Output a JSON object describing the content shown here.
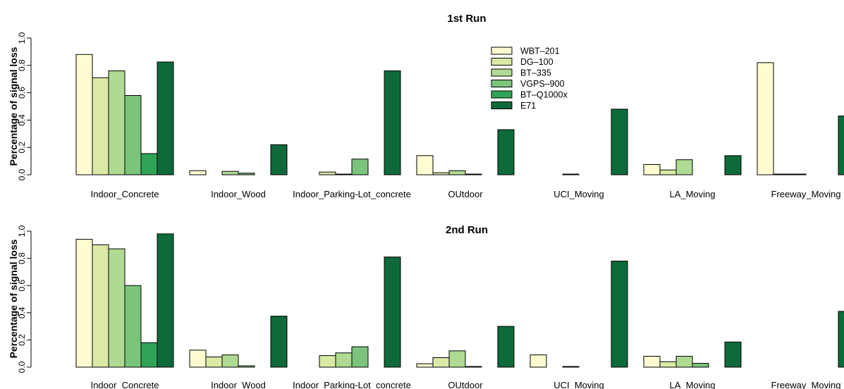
{
  "chart_data": [
    {
      "type": "bar",
      "title": "1st Run",
      "ylabel": "Percentage of signal loss",
      "xlabel": "",
      "ylim": [
        0,
        1.0
      ],
      "yticks": [
        "0.0",
        "0.2",
        "0.4",
        "0.6",
        "0.8",
        "1.0"
      ],
      "categories": [
        "Indoor_Concrete",
        "Indoor_Wood",
        "Indoor_Parking-Lot_concrete",
        "OUtdoor",
        "UCI_Moving",
        "LA_Moving",
        "Freeway_Moving"
      ],
      "legend_position": "top-center",
      "series": [
        {
          "name": "WBT–201",
          "color": "#FFFCD2",
          "values": [
            0.88,
            0.03,
            0.0,
            0.14,
            0.0,
            0.075,
            0.82
          ]
        },
        {
          "name": "DG–100",
          "color": "#D9E9A6",
          "values": [
            0.71,
            0.0,
            0.02,
            0.015,
            0.0,
            0.035,
            0.005
          ]
        },
        {
          "name": "BT–335",
          "color": "#AFDA92",
          "values": [
            0.76,
            0.025,
            0.005,
            0.03,
            0.005,
            0.11,
            0.005
          ]
        },
        {
          "name": "VGPS–900",
          "color": "#7AC47C",
          "values": [
            0.58,
            0.012,
            0.115,
            0.005,
            0.0,
            0.0,
            0.0
          ]
        },
        {
          "name": "BT–Q1000x",
          "color": "#2FA456",
          "values": [
            0.155,
            0.0,
            0.0,
            0.0,
            0.0,
            0.0,
            0.0
          ]
        },
        {
          "name": "E71",
          "color": "#0E6A3A",
          "values": [
            0.825,
            0.22,
            0.76,
            0.33,
            0.48,
            0.14,
            0.43
          ]
        }
      ]
    },
    {
      "type": "bar",
      "title": "2nd Run",
      "ylabel": "Percentage of signal loss",
      "xlabel": "",
      "ylim": [
        0,
        1.0
      ],
      "yticks": [
        "0.0",
        "0.2",
        "0.4",
        "0.6",
        "0.8",
        "1.0"
      ],
      "categories": [
        "Indoor_Concrete",
        "Indoor_Wood",
        "Indoor_Parking-Lot_concrete",
        "OUtdoor",
        "UCI_Moving",
        "LA_Moving",
        "Freeway_Moving"
      ],
      "series": [
        {
          "name": "WBT–201",
          "color": "#FFFCD2",
          "values": [
            0.94,
            0.125,
            0.0,
            0.025,
            0.09,
            0.08,
            0.0
          ]
        },
        {
          "name": "DG–100",
          "color": "#D9E9A6",
          "values": [
            0.9,
            0.075,
            0.085,
            0.07,
            0.0,
            0.04,
            0.0
          ]
        },
        {
          "name": "BT–335",
          "color": "#AFDA92",
          "values": [
            0.87,
            0.09,
            0.105,
            0.12,
            0.005,
            0.08,
            0.0
          ]
        },
        {
          "name": "VGPS–900",
          "color": "#7AC47C",
          "values": [
            0.6,
            0.01,
            0.15,
            0.005,
            0.0,
            0.028,
            0.0
          ]
        },
        {
          "name": "BT–Q1000x",
          "color": "#2FA456",
          "values": [
            0.18,
            0.0,
            0.0,
            0.0,
            0.0,
            0.0,
            0.0
          ]
        },
        {
          "name": "E71",
          "color": "#0E6A3A",
          "values": [
            0.98,
            0.375,
            0.81,
            0.3,
            0.78,
            0.185,
            0.41
          ]
        }
      ]
    }
  ]
}
